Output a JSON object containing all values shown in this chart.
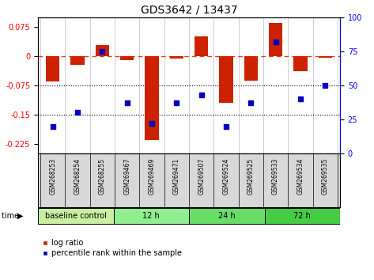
{
  "title": "GDS3642 / 13437",
  "samples": [
    "GSM268253",
    "GSM268254",
    "GSM268255",
    "GSM269467",
    "GSM269469",
    "GSM269471",
    "GSM269507",
    "GSM269524",
    "GSM269525",
    "GSM269533",
    "GSM269534",
    "GSM269535"
  ],
  "log_ratio": [
    -0.065,
    -0.022,
    0.028,
    -0.01,
    -0.215,
    -0.005,
    0.052,
    -0.12,
    -0.062,
    0.085,
    -0.038,
    -0.004
  ],
  "percentile_rank": [
    20,
    30,
    75,
    37,
    22,
    37,
    43,
    20,
    37,
    82,
    40,
    50
  ],
  "groups": [
    {
      "label": "baseline control",
      "count": 3,
      "color": "#c8f0a0"
    },
    {
      "label": "12 h",
      "count": 3,
      "color": "#90ee90"
    },
    {
      "label": "24 h",
      "count": 3,
      "color": "#66dd66"
    },
    {
      "label": "72 h",
      "count": 3,
      "color": "#44cc44"
    }
  ],
  "ylim_left": [
    -0.25,
    0.1
  ],
  "ylim_right": [
    0,
    100
  ],
  "left_ticks": [
    0.075,
    0,
    -0.075,
    -0.15,
    -0.225
  ],
  "right_ticks": [
    100,
    75,
    50,
    25,
    0
  ],
  "hline_zero": 0,
  "hlines_dotted": [
    -0.075,
    -0.15
  ],
  "bar_color": "#cc2200",
  "dot_color": "#0000bb",
  "bar_width": 0.55,
  "title_fontsize": 10,
  "tick_fontsize": 7,
  "sample_fontsize": 5.5,
  "group_fontsize": 7,
  "legend_fontsize": 7
}
